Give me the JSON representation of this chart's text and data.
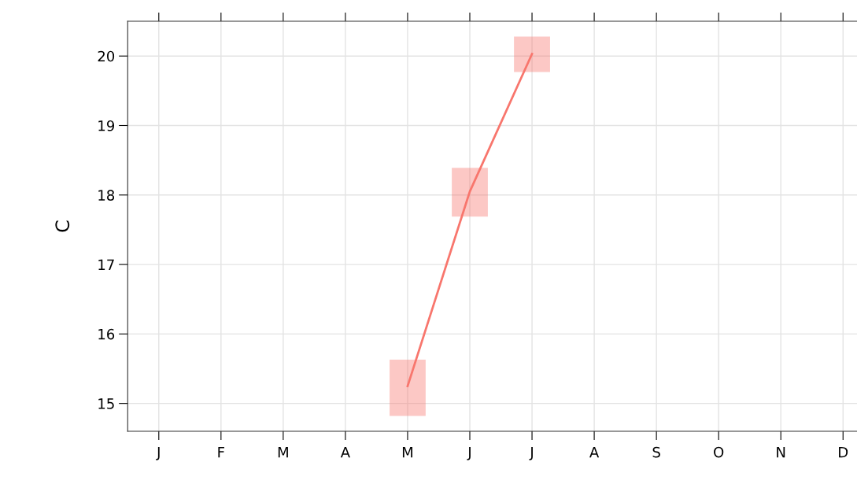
{
  "chart_data": {
    "type": "line",
    "ylabel": "C",
    "categories": [
      "J",
      "F",
      "M",
      "A",
      "M",
      "J",
      "J",
      "A",
      "S",
      "O",
      "N",
      "D"
    ],
    "series": [
      {
        "color": "#f8766d",
        "values": [
          null,
          null,
          null,
          null,
          15.25,
          18.05,
          20.03,
          null,
          null,
          null,
          null,
          null
        ],
        "errors": [
          null,
          null,
          null,
          null,
          [
            14.82,
            15.63
          ],
          [
            17.69,
            18.39
          ],
          [
            19.77,
            20.28
          ],
          null,
          null,
          null,
          null,
          null
        ]
      }
    ],
    "ylim": [
      14.6,
      20.5
    ],
    "yticks": [
      15,
      16,
      17,
      18,
      19,
      20
    ],
    "grid": true
  }
}
